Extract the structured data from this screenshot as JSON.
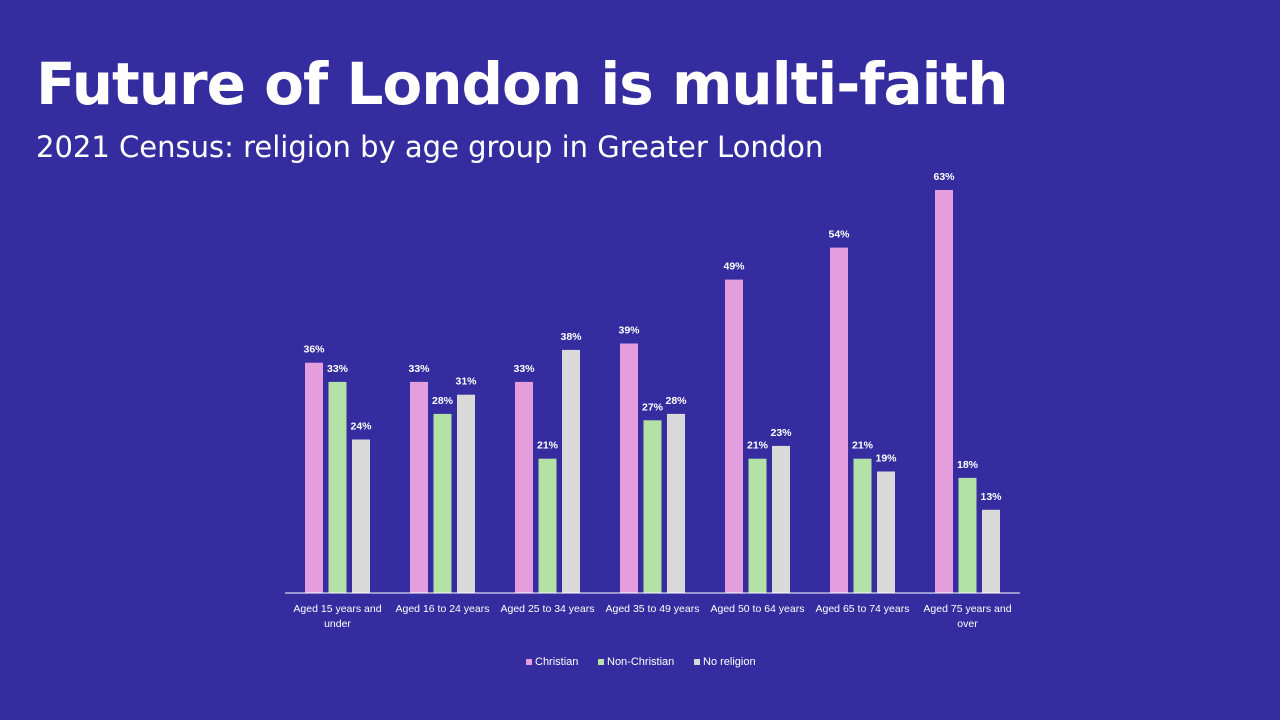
{
  "slide": {
    "title": "Future of London is multi-faith",
    "subtitle": "2021 Census: religion by age group in Greater London",
    "background": "#352d9f"
  },
  "chart_data": {
    "type": "bar",
    "categories": [
      [
        "Aged 15 years and",
        "under"
      ],
      [
        "Aged 16 to 24 years"
      ],
      [
        "Aged 25 to 34 years"
      ],
      [
        "Aged 35 to 49 years"
      ],
      [
        "Aged 50 to 64 years"
      ],
      [
        "Aged 65 to 74 years"
      ],
      [
        "Aged 75 years and",
        "over"
      ]
    ],
    "series": [
      {
        "name": "Christian",
        "color": "#e49ede",
        "values": [
          36,
          33,
          33,
          39,
          49,
          54,
          63
        ],
        "labels": [
          "36%",
          "33%",
          "33%",
          "39%",
          "49%",
          "54%",
          "63%"
        ]
      },
      {
        "name": "Non-Christian",
        "color": "#b4e2a6",
        "values": [
          33,
          28,
          21,
          27,
          21,
          21,
          18
        ],
        "labels": [
          "33%",
          "28%",
          "21%",
          "27%",
          "21%",
          "21%",
          "18%"
        ]
      },
      {
        "name": "No religion",
        "color": "#d9d9d9",
        "values": [
          24,
          31,
          38,
          28,
          23,
          19,
          13
        ],
        "labels": [
          "24%",
          "31%",
          "38%",
          "28%",
          "23%",
          "19%",
          "13%"
        ]
      }
    ],
    "unit": "%",
    "ylim": [
      0,
      63
    ],
    "grid": false,
    "legend": "bottom"
  }
}
